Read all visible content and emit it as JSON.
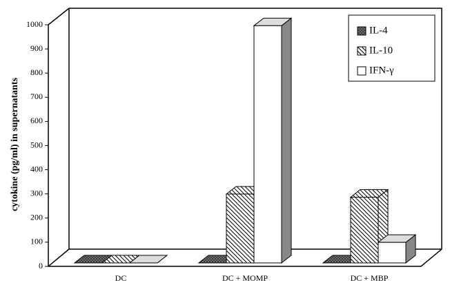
{
  "chart_data": {
    "type": "bar3d",
    "y_label": "cytokine (pg/ml) in supernatants",
    "categories": [
      "DC",
      "DC + MOMP",
      "DC + MBP"
    ],
    "series": [
      {
        "name": "IL-4",
        "color": "#777777",
        "values": [
          0,
          0,
          0
        ]
      },
      {
        "name": "IL-10",
        "color": "#ffffff",
        "values": [
          0,
          285,
          272
        ]
      },
      {
        "name": "IFN-γ",
        "color": "#ffffff",
        "values": [
          0,
          982,
          85
        ]
      }
    ],
    "ylim": [
      0,
      1000
    ],
    "yticks": [
      0,
      100,
      200,
      300,
      400,
      500,
      600,
      700,
      800,
      900,
      1000
    ]
  }
}
